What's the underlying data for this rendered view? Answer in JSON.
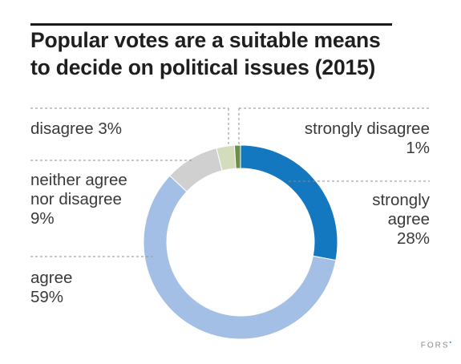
{
  "title_line1": "Popular votes are a suitable means",
  "title_line2": "to decide on political issues (2015)",
  "chart_data": {
    "type": "pie",
    "title": "Popular votes are a suitable means to decide on political issues (2015)",
    "slices": [
      {
        "label": "strongly agree",
        "value": 28,
        "value_label": "28%",
        "color": "#1478c0"
      },
      {
        "label": "agree",
        "value": 59,
        "value_label": "59%",
        "color": "#a4bfe6"
      },
      {
        "label": "neither agree nor disagree",
        "value": 9,
        "value_label": "9%",
        "color": "#d0d0d0"
      },
      {
        "label": "disagree",
        "value": 3,
        "value_label": "3%",
        "color": "#d3dcbd"
      },
      {
        "label": "strongly disagree",
        "value": 1,
        "value_label": "1%",
        "color": "#6c8f4a"
      }
    ]
  },
  "labels": {
    "disagree": "disagree 3%",
    "strongly_disagree_1": "strongly disagree",
    "strongly_disagree_2": "1%",
    "neither_1": "neither agree",
    "neither_2": "nor disagree",
    "neither_3": "9%",
    "strongly_agree_1": "strongly",
    "strongly_agree_2": "agree",
    "strongly_agree_3": "28%",
    "agree_1": "agree",
    "agree_2": "59%"
  },
  "footer": {
    "brand": "FORS",
    "brand_mark": "▪"
  }
}
